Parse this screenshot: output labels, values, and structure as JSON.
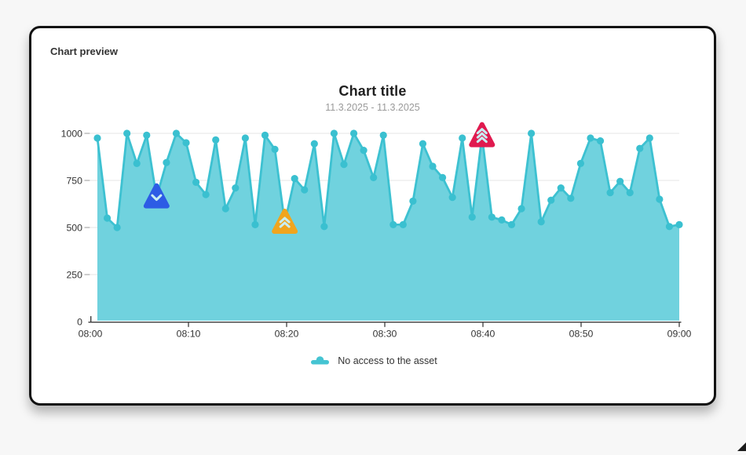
{
  "card": {
    "label": "Chart preview"
  },
  "legend": {
    "items": [
      {
        "label": "No access to the asset",
        "color": "#45c4d2"
      }
    ]
  },
  "chart_data": {
    "type": "area",
    "title": "Chart title",
    "subtitle": "11.3.2025 - 11.3.2025",
    "series": [
      {
        "name": "No access to the asset",
        "color_line": "#3dc1d1",
        "color_fill": "#70d2de"
      }
    ],
    "x": [
      "08:01",
      "08:02",
      "08:03",
      "08:04",
      "08:05",
      "08:06",
      "08:07",
      "08:08",
      "08:09",
      "08:10",
      "08:11",
      "08:12",
      "08:13",
      "08:14",
      "08:15",
      "08:16",
      "08:17",
      "08:18",
      "08:19",
      "08:20",
      "08:21",
      "08:22",
      "08:23",
      "08:24",
      "08:25",
      "08:26",
      "08:27",
      "08:28",
      "08:29",
      "08:30",
      "08:31",
      "08:32",
      "08:33",
      "08:34",
      "08:35",
      "08:36",
      "08:37",
      "08:38",
      "08:39",
      "08:40",
      "08:41",
      "08:42",
      "08:43",
      "08:44",
      "08:45",
      "08:46",
      "08:47",
      "08:48",
      "08:49",
      "08:50",
      "08:51",
      "08:52",
      "08:53",
      "08:54",
      "08:55",
      "08:56",
      "08:57",
      "08:58",
      "08:59",
      "09:00"
    ],
    "values": [
      975,
      550,
      500,
      1000,
      840,
      990,
      660,
      845,
      1000,
      950,
      740,
      675,
      965,
      600,
      710,
      975,
      515,
      990,
      915,
      525,
      760,
      700,
      945,
      505,
      1000,
      835,
      1000,
      910,
      765,
      990,
      515,
      515,
      640,
      945,
      825,
      765,
      660,
      975,
      555,
      985,
      555,
      540,
      515,
      600,
      1000,
      530,
      645,
      710,
      655,
      840,
      975,
      960,
      685,
      745,
      685,
      920,
      975,
      650,
      505,
      515
    ],
    "ylim": [
      0,
      1000
    ],
    "y_ticks": [
      0,
      250,
      500,
      750,
      1000
    ],
    "y_gridlines": [
      250,
      500,
      750,
      1000
    ],
    "x_tick_labels": [
      "08:00",
      "08:10",
      "08:20",
      "08:30",
      "08:40",
      "08:50",
      "09:00"
    ],
    "grid": true,
    "legend_position": "bottom",
    "markers": [
      {
        "index": 6,
        "time": "08:07",
        "type": "chevron-down",
        "severity": "low",
        "color": "#2d5ce5"
      },
      {
        "index": 19,
        "time": "08:20",
        "type": "chevron-double-up",
        "severity": "medium",
        "color": "#f0a51e"
      },
      {
        "index": 39,
        "time": "08:40",
        "type": "chevron-triple-up",
        "severity": "high",
        "color": "#e01a4f"
      }
    ]
  }
}
